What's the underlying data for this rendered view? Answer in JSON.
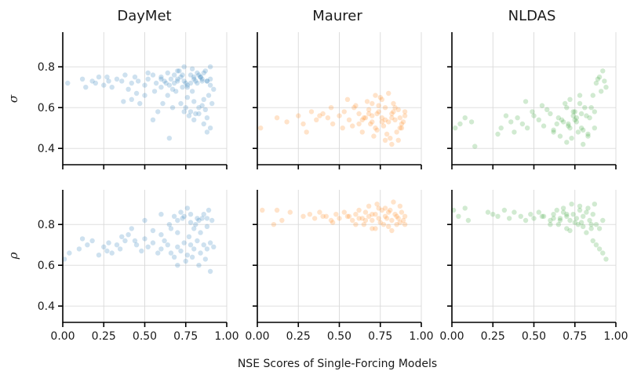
{
  "chart_data": {
    "type": "scatter",
    "xlabel": "NSE Scores of Single-Forcing Models",
    "columns": [
      {
        "title": "DayMet",
        "color": "#1f77b4"
      },
      {
        "title": "Maurer",
        "color": "#ff7f0e"
      },
      {
        "title": "NLDAS",
        "color": "#2ca02c"
      }
    ],
    "rows": [
      {
        "ylabel": "σ"
      },
      {
        "ylabel": "ρ"
      }
    ],
    "xlim": [
      0,
      1
    ],
    "ylim": [
      0.32,
      0.97
    ],
    "xticks": [
      "0.00",
      "0.25",
      "0.50",
      "0.75",
      "1.00"
    ],
    "yticks": [
      "0.4",
      "0.6",
      "0.8"
    ],
    "grid": true,
    "panels": [
      {
        "row": 0,
        "col": 0,
        "x": [
          0.03,
          0.12,
          0.14,
          0.18,
          0.2,
          0.25,
          0.27,
          0.3,
          0.33,
          0.36,
          0.38,
          0.4,
          0.42,
          0.44,
          0.46,
          0.5,
          0.52,
          0.55,
          0.57,
          0.6,
          0.62,
          0.64,
          0.66,
          0.68,
          0.7,
          0.72,
          0.74,
          0.76,
          0.78,
          0.8,
          0.82,
          0.84,
          0.86,
          0.88,
          0.9,
          0.42,
          0.5,
          0.56,
          0.6,
          0.63,
          0.67,
          0.7,
          0.73,
          0.76,
          0.79,
          0.81,
          0.84,
          0.87,
          0.9,
          0.72,
          0.75,
          0.78,
          0.8,
          0.83,
          0.85,
          0.88,
          0.86,
          0.9,
          0.64,
          0.67,
          0.74,
          0.77,
          0.8,
          0.83,
          0.86,
          0.88,
          0.91,
          0.55,
          0.58,
          0.61,
          0.65,
          0.69,
          0.71,
          0.74,
          0.79,
          0.82,
          0.85,
          0.89,
          0.92,
          0.76,
          0.81,
          0.87,
          0.52,
          0.47,
          0.37,
          0.28,
          0.22,
          0.45,
          0.65,
          0.7,
          0.73,
          0.78,
          0.83,
          0.88,
          0.6,
          0.68,
          0.75,
          0.8,
          0.85,
          0.9
        ],
        "y": [
          0.72,
          0.74,
          0.7,
          0.73,
          0.72,
          0.71,
          0.75,
          0.7,
          0.74,
          0.73,
          0.76,
          0.69,
          0.72,
          0.75,
          0.73,
          0.71,
          0.74,
          0.76,
          0.72,
          0.75,
          0.73,
          0.77,
          0.74,
          0.72,
          0.78,
          0.75,
          0.73,
          0.71,
          0.76,
          0.74,
          0.72,
          0.75,
          0.77,
          0.73,
          0.71,
          0.64,
          0.66,
          0.68,
          0.7,
          0.72,
          0.69,
          0.74,
          0.76,
          0.7,
          0.68,
          0.73,
          0.75,
          0.78,
          0.8,
          0.62,
          0.6,
          0.58,
          0.63,
          0.57,
          0.61,
          0.55,
          0.52,
          0.5,
          0.66,
          0.6,
          0.58,
          0.56,
          0.54,
          0.6,
          0.64,
          0.48,
          0.62,
          0.54,
          0.58,
          0.62,
          0.45,
          0.68,
          0.78,
          0.8,
          0.79,
          0.77,
          0.74,
          0.66,
          0.69,
          0.65,
          0.57,
          0.59,
          0.77,
          0.62,
          0.63,
          0.73,
          0.75,
          0.67,
          0.71,
          0.73,
          0.7,
          0.72,
          0.76,
          0.73,
          0.74,
          0.76,
          0.72,
          0.75,
          0.73,
          0.74
        ]
      },
      {
        "row": 0,
        "col": 1,
        "x": [
          0.02,
          0.12,
          0.18,
          0.25,
          0.28,
          0.33,
          0.36,
          0.4,
          0.43,
          0.46,
          0.5,
          0.53,
          0.56,
          0.59,
          0.62,
          0.65,
          0.68,
          0.7,
          0.72,
          0.74,
          0.76,
          0.78,
          0.8,
          0.82,
          0.84,
          0.86,
          0.88,
          0.9,
          0.55,
          0.6,
          0.64,
          0.67,
          0.71,
          0.75,
          0.79,
          0.83,
          0.87,
          0.9,
          0.66,
          0.7,
          0.73,
          0.77,
          0.81,
          0.85,
          0.89,
          0.62,
          0.68,
          0.74,
          0.78,
          0.82,
          0.86,
          0.72,
          0.76,
          0.8,
          0.84,
          0.88,
          0.58,
          0.64,
          0.7,
          0.76,
          0.82,
          0.45,
          0.52,
          0.38,
          0.3,
          0.69,
          0.73,
          0.78,
          0.83,
          0.87
        ],
        "y": [
          0.5,
          0.55,
          0.53,
          0.56,
          0.52,
          0.58,
          0.54,
          0.57,
          0.55,
          0.52,
          0.56,
          0.58,
          0.54,
          0.6,
          0.52,
          0.55,
          0.57,
          0.62,
          0.5,
          0.58,
          0.55,
          0.6,
          0.53,
          0.57,
          0.54,
          0.59,
          0.52,
          0.56,
          0.64,
          0.61,
          0.48,
          0.63,
          0.46,
          0.65,
          0.47,
          0.62,
          0.5,
          0.58,
          0.55,
          0.53,
          0.49,
          0.51,
          0.45,
          0.48,
          0.53,
          0.57,
          0.59,
          0.61,
          0.44,
          0.42,
          0.44,
          0.66,
          0.64,
          0.67,
          0.6,
          0.5,
          0.51,
          0.54,
          0.56,
          0.53,
          0.55,
          0.6,
          0.5,
          0.56,
          0.48,
          0.52,
          0.57,
          0.54,
          0.58,
          0.55
        ]
      },
      {
        "row": 0,
        "col": 2,
        "x": [
          0.02,
          0.05,
          0.08,
          0.12,
          0.14,
          0.28,
          0.3,
          0.33,
          0.36,
          0.38,
          0.4,
          0.43,
          0.46,
          0.5,
          0.53,
          0.56,
          0.6,
          0.62,
          0.65,
          0.68,
          0.7,
          0.72,
          0.74,
          0.76,
          0.78,
          0.8,
          0.82,
          0.85,
          0.88,
          0.9,
          0.92,
          0.94,
          0.86,
          0.89,
          0.91,
          0.93,
          0.66,
          0.7,
          0.73,
          0.77,
          0.8,
          0.83,
          0.69,
          0.72,
          0.75,
          0.78,
          0.81,
          0.64,
          0.71,
          0.76,
          0.79,
          0.84,
          0.87,
          0.58,
          0.62,
          0.67,
          0.74,
          0.55,
          0.45,
          0.49,
          0.71,
          0.75,
          0.79,
          0.83,
          0.87
        ],
        "y": [
          0.5,
          0.52,
          0.55,
          0.53,
          0.41,
          0.47,
          0.5,
          0.56,
          0.53,
          0.48,
          0.55,
          0.52,
          0.5,
          0.56,
          0.54,
          0.51,
          0.57,
          0.48,
          0.55,
          0.53,
          0.6,
          0.5,
          0.58,
          0.55,
          0.62,
          0.49,
          0.56,
          0.6,
          0.72,
          0.75,
          0.78,
          0.7,
          0.66,
          0.74,
          0.68,
          0.73,
          0.46,
          0.43,
          0.45,
          0.48,
          0.42,
          0.47,
          0.62,
          0.64,
          0.58,
          0.66,
          0.6,
          0.52,
          0.51,
          0.53,
          0.57,
          0.55,
          0.5,
          0.59,
          0.49,
          0.54,
          0.56,
          0.61,
          0.63,
          0.58,
          0.52,
          0.54,
          0.5,
          0.46,
          0.58
        ]
      },
      {
        "row": 1,
        "col": 0,
        "x": [
          0.01,
          0.04,
          0.1,
          0.12,
          0.15,
          0.18,
          0.22,
          0.25,
          0.28,
          0.3,
          0.33,
          0.36,
          0.38,
          0.42,
          0.45,
          0.48,
          0.5,
          0.52,
          0.55,
          0.58,
          0.6,
          0.62,
          0.64,
          0.66,
          0.68,
          0.7,
          0.72,
          0.74,
          0.76,
          0.78,
          0.8,
          0.82,
          0.84,
          0.86,
          0.88,
          0.9,
          0.92,
          0.65,
          0.7,
          0.74,
          0.78,
          0.82,
          0.86,
          0.89,
          0.72,
          0.76,
          0.8,
          0.84,
          0.88,
          0.91,
          0.7,
          0.75,
          0.79,
          0.83,
          0.87,
          0.9,
          0.5,
          0.55,
          0.6,
          0.66,
          0.7,
          0.77,
          0.81,
          0.85,
          0.35,
          0.4,
          0.44,
          0.27,
          0.6,
          0.68,
          0.73,
          0.78,
          0.83,
          0.88
        ],
        "y": [
          0.63,
          0.66,
          0.68,
          0.73,
          0.7,
          0.72,
          0.65,
          0.69,
          0.71,
          0.66,
          0.7,
          0.74,
          0.72,
          0.78,
          0.7,
          0.67,
          0.73,
          0.69,
          0.71,
          0.66,
          0.68,
          0.72,
          0.7,
          0.66,
          0.64,
          0.69,
          0.67,
          0.71,
          0.65,
          0.7,
          0.68,
          0.72,
          0.66,
          0.7,
          0.68,
          0.71,
          0.69,
          0.8,
          0.82,
          0.84,
          0.81,
          0.83,
          0.85,
          0.87,
          0.86,
          0.88,
          0.78,
          0.76,
          0.79,
          0.82,
          0.6,
          0.62,
          0.64,
          0.6,
          0.63,
          0.57,
          0.82,
          0.77,
          0.75,
          0.78,
          0.76,
          0.74,
          0.8,
          0.83,
          0.68,
          0.75,
          0.72,
          0.67,
          0.85,
          0.84,
          0.83,
          0.85,
          0.82,
          0.83
        ]
      },
      {
        "row": 1,
        "col": 1,
        "x": [
          0.03,
          0.1,
          0.12,
          0.15,
          0.2,
          0.28,
          0.32,
          0.35,
          0.38,
          0.42,
          0.45,
          0.48,
          0.5,
          0.53,
          0.56,
          0.58,
          0.6,
          0.62,
          0.64,
          0.66,
          0.68,
          0.7,
          0.72,
          0.74,
          0.76,
          0.78,
          0.8,
          0.82,
          0.84,
          0.86,
          0.88,
          0.9,
          0.65,
          0.7,
          0.75,
          0.8,
          0.85,
          0.89,
          0.68,
          0.73,
          0.78,
          0.83,
          0.87,
          0.6,
          0.66,
          0.72,
          0.77,
          0.82,
          0.87,
          0.55,
          0.62,
          0.7,
          0.79,
          0.85,
          0.9,
          0.74,
          0.81,
          0.46,
          0.4
        ],
        "y": [
          0.87,
          0.8,
          0.87,
          0.82,
          0.86,
          0.84,
          0.85,
          0.83,
          0.86,
          0.84,
          0.82,
          0.85,
          0.83,
          0.86,
          0.84,
          0.82,
          0.85,
          0.87,
          0.83,
          0.86,
          0.84,
          0.82,
          0.85,
          0.83,
          0.87,
          0.84,
          0.86,
          0.82,
          0.85,
          0.83,
          0.86,
          0.84,
          0.8,
          0.78,
          0.81,
          0.79,
          0.8,
          0.82,
          0.89,
          0.9,
          0.88,
          0.91,
          0.89,
          0.8,
          0.82,
          0.78,
          0.8,
          0.77,
          0.81,
          0.84,
          0.83,
          0.85,
          0.83,
          0.84,
          0.8,
          0.88,
          0.87,
          0.81,
          0.84
        ]
      },
      {
        "row": 1,
        "col": 2,
        "x": [
          0.01,
          0.04,
          0.08,
          0.1,
          0.22,
          0.25,
          0.28,
          0.32,
          0.35,
          0.38,
          0.42,
          0.45,
          0.48,
          0.5,
          0.53,
          0.56,
          0.6,
          0.62,
          0.64,
          0.66,
          0.68,
          0.7,
          0.72,
          0.74,
          0.76,
          0.78,
          0.8,
          0.82,
          0.84,
          0.86,
          0.88,
          0.9,
          0.92,
          0.65,
          0.7,
          0.75,
          0.8,
          0.85,
          0.68,
          0.73,
          0.78,
          0.83,
          0.87,
          0.6,
          0.66,
          0.72,
          0.77,
          0.82,
          0.86,
          0.88,
          0.9,
          0.92,
          0.94,
          0.55,
          0.62,
          0.7,
          0.79,
          0.85
        ],
        "y": [
          0.87,
          0.84,
          0.88,
          0.82,
          0.86,
          0.85,
          0.84,
          0.87,
          0.83,
          0.86,
          0.84,
          0.82,
          0.85,
          0.83,
          0.86,
          0.84,
          0.82,
          0.85,
          0.87,
          0.83,
          0.86,
          0.84,
          0.82,
          0.85,
          0.83,
          0.87,
          0.84,
          0.86,
          0.82,
          0.85,
          0.8,
          0.78,
          0.82,
          0.8,
          0.78,
          0.81,
          0.79,
          0.8,
          0.88,
          0.9,
          0.89,
          0.88,
          0.9,
          0.8,
          0.82,
          0.77,
          0.8,
          0.76,
          0.72,
          0.7,
          0.68,
          0.66,
          0.63,
          0.84,
          0.83,
          0.85,
          0.81,
          0.78
        ]
      }
    ]
  }
}
